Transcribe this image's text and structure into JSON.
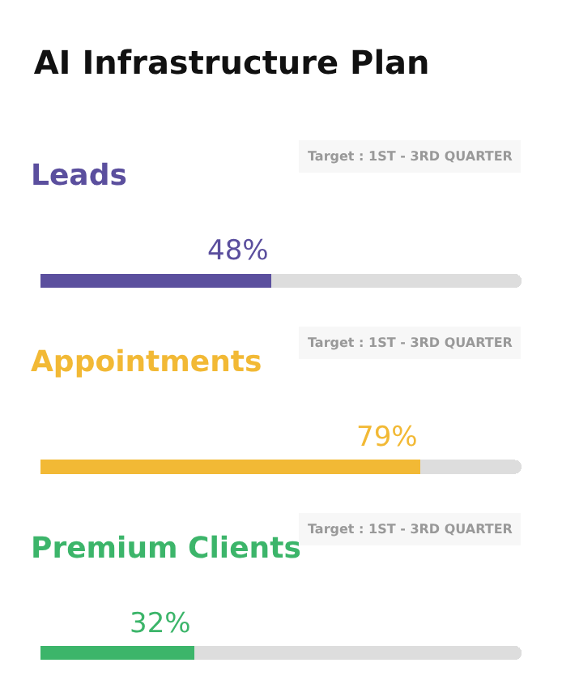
{
  "chart_data": {
    "type": "bar",
    "orientation": "horizontal",
    "stacked": true,
    "title": "AI Infrastructure Plan",
    "categories": [
      "Leads",
      "Appointments",
      "Premium Clients"
    ],
    "series": [
      {
        "colors": [
          "#5b4f9e",
          "#f2b935",
          "#3cb56a"
        ],
        "values": [
          48,
          79,
          32
        ],
        "value_labels": [
          "48%",
          "79%",
          "32%"
        ]
      },
      {
        "color": "#dddddd",
        "values": [
          52,
          21,
          68
        ]
      }
    ],
    "xlim": [
      0,
      100
    ],
    "tick_labels": false,
    "annotations": [
      "Target : 1ST - 3RD QUARTER",
      "Target : 1ST - 3RD QUARTER",
      "Target : 1ST - 3RD QUARTER"
    ]
  }
}
